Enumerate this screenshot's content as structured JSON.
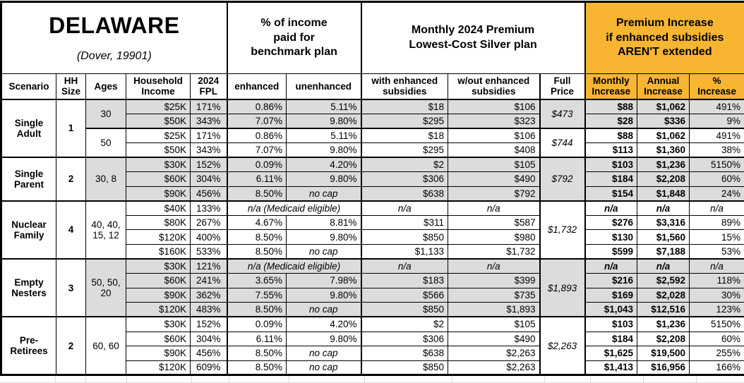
{
  "colors": {
    "accent_orange": "#F7B532",
    "row_shade_gray": "#DCDCDC"
  },
  "chart_data": {
    "type": "table",
    "title": "DELAWARE",
    "subtitle": "(Dover, 19901)",
    "section_headers": {
      "income_pct": "% of income\npaid for\nbenchmark plan",
      "premium": "Monthly 2024 Premium\nLowest-Cost Silver plan",
      "increase": "Premium Increase\nif enhanced subsidies\nAREN'T extended"
    },
    "columns": [
      "Scenario",
      "HH\nSize",
      "Ages",
      "Household\nIncome",
      "2024\nFPL",
      "enhanced",
      "unenhanced",
      "with enhanced\nsubsidies",
      "w/out enhanced\nsubsidies",
      "Full\nPrice",
      "Monthly\nIncrease",
      "Annual\nIncrease",
      "%\nIncrease"
    ],
    "groups": [
      {
        "scenario": "Single\nAdult",
        "hh_size": "1",
        "blocks": [
          {
            "ages": "30",
            "shaded": true,
            "full_price": "$473",
            "rows": [
              {
                "income": "$25K",
                "fpl": "171%",
                "enhanced": "0.86%",
                "unenhanced": "5.11%",
                "with_subsidies": "$18",
                "without_subsidies": "$106",
                "monthly_increase": "$88",
                "annual_increase": "$1,062",
                "pct_increase": "491%"
              },
              {
                "income": "$50K",
                "fpl": "343%",
                "enhanced": "7.07%",
                "unenhanced": "9.80%",
                "with_subsidies": "$295",
                "without_subsidies": "$323",
                "monthly_increase": "$28",
                "annual_increase": "$336",
                "pct_increase": "9%"
              }
            ]
          },
          {
            "ages": "50",
            "shaded": false,
            "full_price": "$744",
            "rows": [
              {
                "income": "$25K",
                "fpl": "171%",
                "enhanced": "0.86%",
                "unenhanced": "5.11%",
                "with_subsidies": "$18",
                "without_subsidies": "$106",
                "monthly_increase": "$88",
                "annual_increase": "$1,062",
                "pct_increase": "491%"
              },
              {
                "income": "$50K",
                "fpl": "343%",
                "enhanced": "7.07%",
                "unenhanced": "9.80%",
                "with_subsidies": "$295",
                "without_subsidies": "$408",
                "monthly_increase": "$113",
                "annual_increase": "$1,360",
                "pct_increase": "38%"
              }
            ]
          }
        ]
      },
      {
        "scenario": "Single\nParent",
        "hh_size": "2",
        "blocks": [
          {
            "ages": "30, 8",
            "shaded": true,
            "full_price": "$792",
            "rows": [
              {
                "income": "$30K",
                "fpl": "152%",
                "enhanced": "0.09%",
                "unenhanced": "4.20%",
                "with_subsidies": "$2",
                "without_subsidies": "$105",
                "monthly_increase": "$103",
                "annual_increase": "$1,236",
                "pct_increase": "5150%"
              },
              {
                "income": "$60K",
                "fpl": "304%",
                "enhanced": "6.11%",
                "unenhanced": "9.80%",
                "with_subsidies": "$306",
                "without_subsidies": "$490",
                "monthly_increase": "$184",
                "annual_increase": "$2,208",
                "pct_increase": "60%"
              },
              {
                "income": "$90K",
                "fpl": "456%",
                "enhanced": "8.50%",
                "unenhanced": "no cap",
                "with_subsidies": "$638",
                "without_subsidies": "$792",
                "monthly_increase": "$154",
                "annual_increase": "$1,848",
                "pct_increase": "24%"
              }
            ]
          }
        ]
      },
      {
        "scenario": "Nuclear\nFamily",
        "hh_size": "4",
        "blocks": [
          {
            "ages": "40, 40,\n15, 12",
            "shaded": false,
            "full_price": "$1,732",
            "rows": [
              {
                "income": "$40K",
                "fpl": "133%",
                "medicaid_note": "n/a (Medicaid eligible)",
                "with_subsidies": "n/a",
                "without_subsidies": "n/a",
                "monthly_increase": "n/a",
                "annual_increase": "n/a",
                "pct_increase": "n/a"
              },
              {
                "income": "$80K",
                "fpl": "267%",
                "enhanced": "4.67%",
                "unenhanced": "8.81%",
                "with_subsidies": "$311",
                "without_subsidies": "$587",
                "monthly_increase": "$276",
                "annual_increase": "$3,316",
                "pct_increase": "89%"
              },
              {
                "income": "$120K",
                "fpl": "400%",
                "enhanced": "8.50%",
                "unenhanced": "9.80%",
                "with_subsidies": "$850",
                "without_subsidies": "$980",
                "monthly_increase": "$130",
                "annual_increase": "$1,560",
                "pct_increase": "15%"
              },
              {
                "income": "$160K",
                "fpl": "533%",
                "enhanced": "8.50%",
                "unenhanced": "no cap",
                "with_subsidies": "$1,133",
                "without_subsidies": "$1,732",
                "monthly_increase": "$599",
                "annual_increase": "$7,188",
                "pct_increase": "53%"
              }
            ]
          }
        ]
      },
      {
        "scenario": "Empty\nNesters",
        "hh_size": "3",
        "blocks": [
          {
            "ages": "50, 50,\n20",
            "shaded": true,
            "full_price": "$1,893",
            "rows": [
              {
                "income": "$30K",
                "fpl": "121%",
                "medicaid_note": "n/a (Medicaid eligible)",
                "with_subsidies": "n/a",
                "without_subsidies": "n/a",
                "monthly_increase": "n/a",
                "annual_increase": "n/a",
                "pct_increase": "n/a"
              },
              {
                "income": "$60K",
                "fpl": "241%",
                "enhanced": "3.65%",
                "unenhanced": "7.98%",
                "with_subsidies": "$183",
                "without_subsidies": "$399",
                "monthly_increase": "$216",
                "annual_increase": "$2,592",
                "pct_increase": "118%"
              },
              {
                "income": "$90K",
                "fpl": "362%",
                "enhanced": "7.55%",
                "unenhanced": "9.80%",
                "with_subsidies": "$566",
                "without_subsidies": "$735",
                "monthly_increase": "$169",
                "annual_increase": "$2,028",
                "pct_increase": "30%"
              },
              {
                "income": "$120K",
                "fpl": "483%",
                "enhanced": "8.50%",
                "unenhanced": "no cap",
                "with_subsidies": "$850",
                "without_subsidies": "$1,893",
                "monthly_increase": "$1,043",
                "annual_increase": "$12,516",
                "pct_increase": "123%"
              }
            ]
          }
        ]
      },
      {
        "scenario": "Pre-\nRetirees",
        "hh_size": "2",
        "blocks": [
          {
            "ages": "60, 60",
            "shaded": false,
            "full_price": "$2,263",
            "rows": [
              {
                "income": "$30K",
                "fpl": "152%",
                "enhanced": "0.09%",
                "unenhanced": "4.20%",
                "with_subsidies": "$2",
                "without_subsidies": "$105",
                "monthly_increase": "$103",
                "annual_increase": "$1,236",
                "pct_increase": "5150%"
              },
              {
                "income": "$60K",
                "fpl": "304%",
                "enhanced": "6.11%",
                "unenhanced": "9.80%",
                "with_subsidies": "$306",
                "without_subsidies": "$490",
                "monthly_increase": "$184",
                "annual_increase": "$2,208",
                "pct_increase": "60%"
              },
              {
                "income": "$90K",
                "fpl": "456%",
                "enhanced": "8.50%",
                "unenhanced": "no cap",
                "with_subsidies": "$638",
                "without_subsidies": "$2,263",
                "monthly_increase": "$1,625",
                "annual_increase": "$19,500",
                "pct_increase": "255%"
              },
              {
                "income": "$120K",
                "fpl": "609%",
                "enhanced": "8.50%",
                "unenhanced": "no cap",
                "with_subsidies": "$850",
                "without_subsidies": "$2,263",
                "monthly_increase": "$1,413",
                "annual_increase": "$16,956",
                "pct_increase": "166%"
              }
            ]
          }
        ]
      }
    ]
  }
}
